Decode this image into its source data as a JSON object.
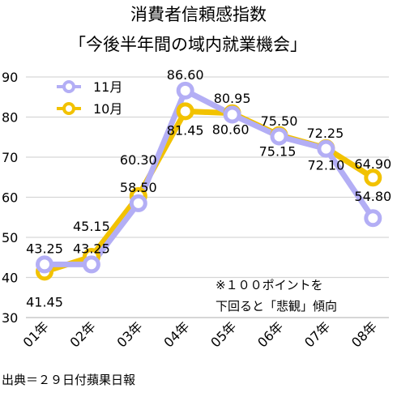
{
  "chart_data": {
    "type": "line",
    "title": [
      "消費者信頼感指数",
      "「今後半年間の域内就業機会」"
    ],
    "xlabel": "",
    "ylabel": "",
    "categories": [
      "01年",
      "02年",
      "03年",
      "04年",
      "05年",
      "06年",
      "07年",
      "08年"
    ],
    "y_ticks": [
      "90",
      "80",
      "70",
      "60",
      "50",
      "40",
      "30"
    ],
    "ylim": [
      30,
      90
    ],
    "grid": "horizontal",
    "legend_position": "top-left",
    "series": [
      {
        "name": "11月",
        "color": "#b3aef5",
        "values": [
          43.25,
          43.25,
          58.5,
          86.6,
          80.6,
          75.15,
          72.1,
          54.8
        ],
        "labels": [
          "43.25",
          "43.25",
          "58.50",
          "86.60",
          "80.60",
          "75.15",
          "72.10",
          "54.80"
        ]
      },
      {
        "name": "10月",
        "color": "#f2c200",
        "values": [
          41.45,
          45.15,
          60.3,
          81.45,
          80.95,
          75.5,
          72.25,
          64.9
        ],
        "labels": [
          "41.45",
          "45.15",
          "60.30",
          "81.45",
          "80.95",
          "75.50",
          "72.25",
          "64.90"
        ]
      }
    ],
    "annotation": [
      "※１００ポイントを",
      "下回ると「悲観」傾向"
    ]
  },
  "source": "出典＝２９日付蘋果日報"
}
